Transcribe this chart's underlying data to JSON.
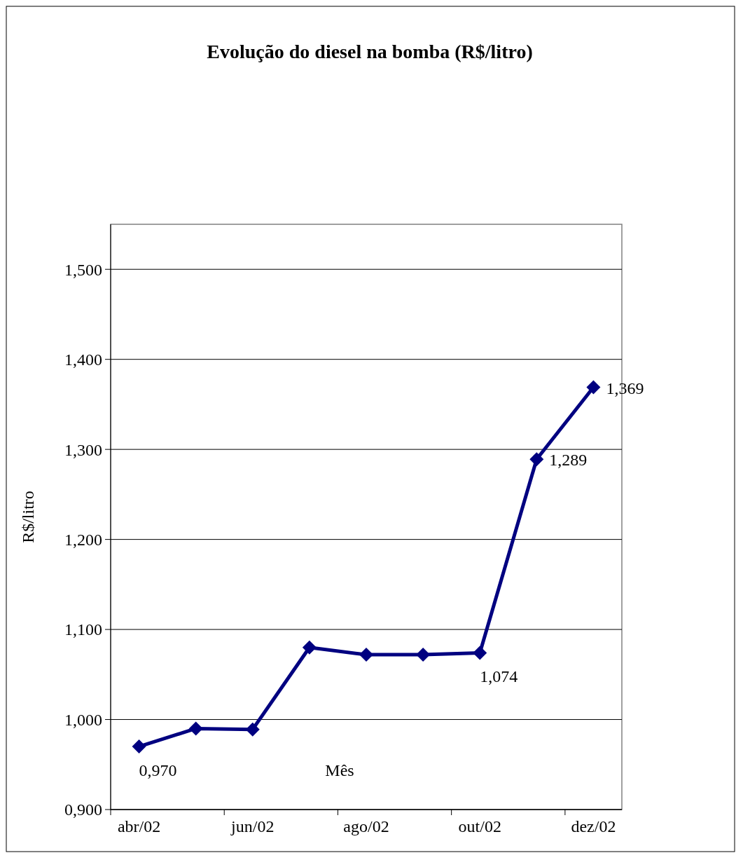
{
  "chart_data": {
    "type": "line",
    "title": "Evolução do diesel na bomba (R$/litro)",
    "xlabel": "Mês",
    "ylabel": "R$/litro",
    "categories": [
      "abr/02",
      null,
      "jun/02",
      null,
      "ago/02",
      null,
      "out/02",
      null,
      "dez/02"
    ],
    "series": [
      {
        "color": "#000080",
        "values": [
          0.97,
          0.99,
          0.989,
          1.08,
          1.072,
          1.072,
          1.074,
          1.289,
          1.369
        ],
        "value_labels": [
          "0,970",
          null,
          null,
          null,
          null,
          null,
          "1,074",
          "1,289",
          "1,369"
        ]
      }
    ],
    "ylim": [
      0.9,
      1.55
    ],
    "yticks": [
      {
        "value": 0.9,
        "label": "0,900"
      },
      {
        "value": 1.0,
        "label": "1,000"
      },
      {
        "value": 1.1,
        "label": "1,100"
      },
      {
        "value": 1.2,
        "label": "1,200"
      },
      {
        "value": 1.3,
        "label": "1,300"
      },
      {
        "value": 1.4,
        "label": "1,400"
      },
      {
        "value": 1.5,
        "label": "1,500"
      }
    ],
    "grid": "y",
    "marker": "diamond",
    "line_style": "solid"
  }
}
